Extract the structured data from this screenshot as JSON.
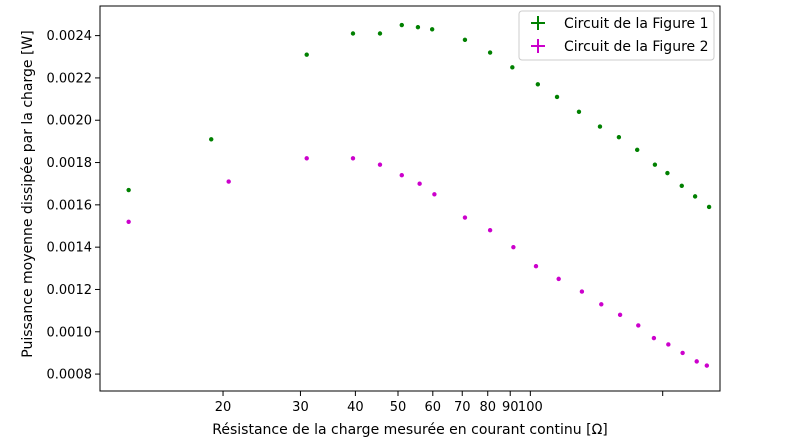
{
  "chart_data": {
    "type": "scatter",
    "xlabel": "Résistance de la charge mesurée en courant continu [Ω]",
    "ylabel": "Puissance moyenne dissipée par la charge [W]",
    "xscale": "log",
    "xlim": [
      10.5,
      270
    ],
    "ylim": [
      0.00072,
      0.00254
    ],
    "grid": false,
    "legend_position": "top-right",
    "x_ticks": [
      20,
      30,
      40,
      50,
      60,
      70,
      80,
      90,
      100
    ],
    "x_tick_labels": [
      "20",
      "30",
      "40",
      "50",
      "60",
      "70",
      "80",
      "90",
      "100"
    ],
    "x_unlabeled_ticks": [
      200
    ],
    "y_ticks": [
      0.0008,
      0.001,
      0.0012,
      0.0014,
      0.0016,
      0.0018,
      0.002,
      0.0022,
      0.0024
    ],
    "y_tick_labels": [
      "0.0008",
      "0.0010",
      "0.0012",
      "0.0014",
      "0.0016",
      "0.0018",
      "0.0020",
      "0.0022",
      "0.0024"
    ],
    "series": [
      {
        "name": "Circuit de la Figure 1",
        "color": "#008000",
        "marker": "plus",
        "x": [
          12.2,
          18.8,
          31.0,
          39.5,
          45.5,
          51.0,
          55.5,
          59.8,
          71.0,
          81.0,
          91.0,
          104,
          115,
          129,
          144,
          159,
          175,
          192,
          205,
          221,
          237,
          255
        ],
        "y": [
          0.00167,
          0.00191,
          0.00231,
          0.00241,
          0.00241,
          0.00245,
          0.00244,
          0.00243,
          0.00238,
          0.00232,
          0.00225,
          0.00217,
          0.00211,
          0.00204,
          0.00197,
          0.00192,
          0.00186,
          0.00179,
          0.00175,
          0.00169,
          0.00164,
          0.00159
        ]
      },
      {
        "name": "Circuit de la Figure 2",
        "color": "#cc00cc",
        "marker": "plus",
        "x": [
          12.2,
          20.6,
          31.0,
          39.5,
          45.5,
          51.0,
          56.0,
          60.5,
          71.0,
          81.0,
          91.5,
          103,
          116,
          131,
          145,
          160,
          176,
          191,
          206,
          222,
          239,
          252
        ],
        "y": [
          0.00152,
          0.00171,
          0.00182,
          0.00182,
          0.00179,
          0.00174,
          0.0017,
          0.00165,
          0.00154,
          0.00148,
          0.0014,
          0.00131,
          0.00125,
          0.00119,
          0.00113,
          0.00108,
          0.00103,
          0.00097,
          0.00094,
          0.0009,
          0.00086,
          0.00084
        ]
      }
    ]
  }
}
